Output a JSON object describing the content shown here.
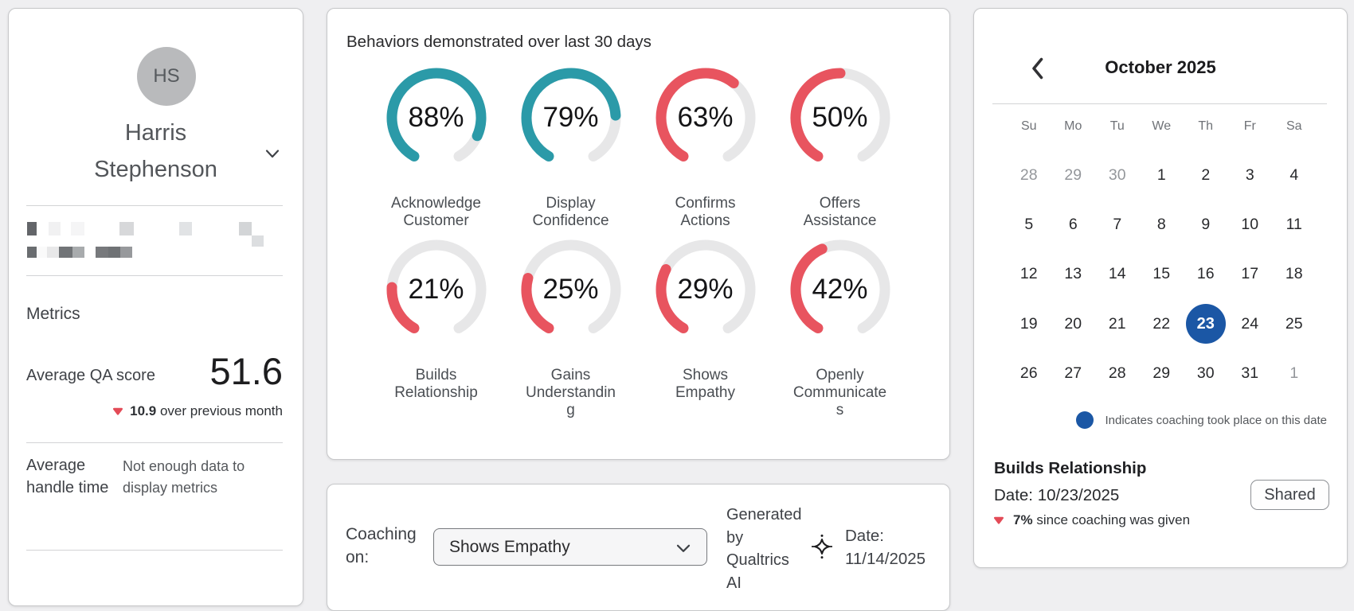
{
  "theme": {
    "teal": "#2b9aa8",
    "red": "#e8545f",
    "blue": "#1b57a5",
    "gauge_track": "#e7e7e8"
  },
  "icons": {
    "profile_expand": "chevron-down-icon",
    "calendar_prev": "chevron-left-icon",
    "select_expand": "chevron-down-icon",
    "ai": "sparkle-icon",
    "decrease": "triangle-down-icon",
    "coaching_day": "blue-dot-icon"
  },
  "profile": {
    "initials": "HS",
    "name": "Harris Stephenson",
    "metrics_title": "Metrics",
    "qa": {
      "label": "Average QA score",
      "value": "51.6",
      "delta_value": "10.9",
      "delta_text": "over previous month"
    },
    "aht": {
      "label": "Average handle time",
      "value": "Not enough data to display metrics"
    }
  },
  "behaviors": {
    "title": "Behaviors demonstrated over last 30 days",
    "items": [
      {
        "pct": 88,
        "label": "Acknowledge\nCustomer",
        "color": "#2b9aa8"
      },
      {
        "pct": 79,
        "label": "Display\nConfidence",
        "color": "#2b9aa8"
      },
      {
        "pct": 63,
        "label": "Confirms\nActions",
        "color": "#e8545f"
      },
      {
        "pct": 50,
        "label": "Offers\nAssistance",
        "color": "#e8545f"
      },
      {
        "pct": 21,
        "label": "Builds\nRelationship",
        "color": "#e8545f"
      },
      {
        "pct": 25,
        "label": "Gains\nUnderstandin\ng",
        "color": "#e8545f"
      },
      {
        "pct": 29,
        "label": "Shows\nEmpathy",
        "color": "#e8545f"
      },
      {
        "pct": 42,
        "label": "Openly\nCommunicate\ns",
        "color": "#e8545f"
      }
    ]
  },
  "coaching": {
    "label": "Coaching on:",
    "value": "Shows Empathy",
    "generated_by": "Generated by Qualtrics AI",
    "date_label": "Date:",
    "date_value": "11/14/2025"
  },
  "calendar": {
    "month_label": "October 2025",
    "weekdays": [
      "Su",
      "Mo",
      "Tu",
      "We",
      "Th",
      "Fr",
      "Sa"
    ],
    "cells": [
      {
        "day": 28,
        "outside": true
      },
      {
        "day": 29,
        "outside": true
      },
      {
        "day": 30,
        "outside": true
      },
      {
        "day": 1
      },
      {
        "day": 2
      },
      {
        "day": 3
      },
      {
        "day": 4
      },
      {
        "day": 5
      },
      {
        "day": 6
      },
      {
        "day": 7
      },
      {
        "day": 8
      },
      {
        "day": 9
      },
      {
        "day": 10
      },
      {
        "day": 11
      },
      {
        "day": 12
      },
      {
        "day": 13
      },
      {
        "day": 14
      },
      {
        "day": 15
      },
      {
        "day": 16
      },
      {
        "day": 17
      },
      {
        "day": 18
      },
      {
        "day": 19
      },
      {
        "day": 20
      },
      {
        "day": 21
      },
      {
        "day": 22
      },
      {
        "day": 23,
        "selected": true
      },
      {
        "day": 24
      },
      {
        "day": 25
      },
      {
        "day": 26
      },
      {
        "day": 27
      },
      {
        "day": 28
      },
      {
        "day": 29
      },
      {
        "day": 30
      },
      {
        "day": 31
      },
      {
        "day": 1,
        "outside": true
      }
    ],
    "legend_text": "Indicates coaching took place on this date",
    "detail": {
      "title": "Builds Relationship",
      "date": "Date: 10/23/2025",
      "shared_label": "Shared",
      "delta_value": "7%",
      "delta_text": "since coaching was given"
    }
  }
}
